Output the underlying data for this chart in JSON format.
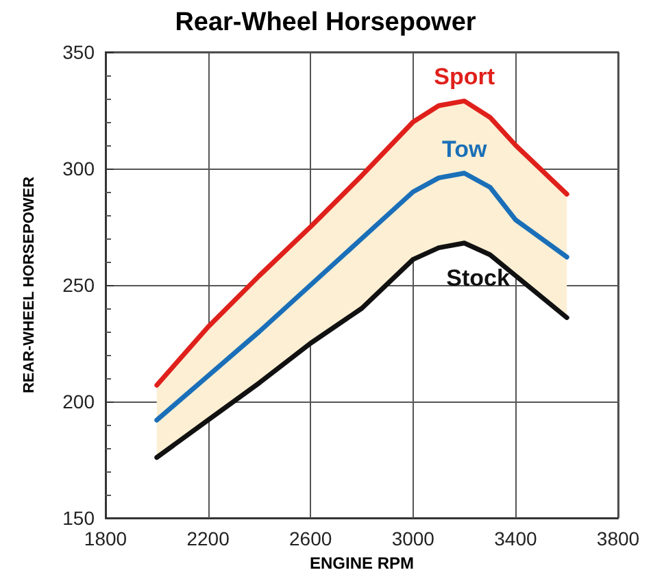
{
  "chart_data": {
    "type": "line",
    "title": "Rear-Wheel Horsepower",
    "xlabel": "ENGINE RPM",
    "ylabel": "REAR-WHEEL HORSEPOWER",
    "x": [
      2000,
      2200,
      2400,
      2600,
      2800,
      3000,
      3100,
      3200,
      3300,
      3400,
      3600
    ],
    "series": [
      {
        "name": "Sport",
        "color": "#e0201b",
        "values": [
          207,
          232,
          254,
          275,
          297,
          320,
          327,
          329,
          322,
          310,
          289
        ]
      },
      {
        "name": "Tow",
        "color": "#1a6fb8",
        "values": [
          192,
          211,
          230,
          250,
          270,
          290,
          296,
          298,
          292,
          278,
          262
        ],
        "lower": [
          176,
          192,
          208,
          225,
          240,
          261,
          266,
          268,
          263,
          254,
          236
        ],
        "upper": [
          207,
          232,
          254,
          275,
          297,
          320,
          327,
          329,
          322,
          310,
          289
        ]
      },
      {
        "name": "Stock",
        "color": "#111111",
        "values": [
          176,
          192,
          208,
          225,
          240,
          261,
          266,
          268,
          263,
          254,
          236
        ]
      }
    ],
    "xlim": [
      1800,
      3800
    ],
    "xticks": [
      1800,
      2200,
      2600,
      3000,
      3400,
      3800
    ],
    "ylim": [
      150,
      350
    ],
    "yticks": [
      150,
      200,
      250,
      300,
      350
    ],
    "grid": true,
    "legend": false,
    "marker": "none",
    "line_style": "solid"
  }
}
